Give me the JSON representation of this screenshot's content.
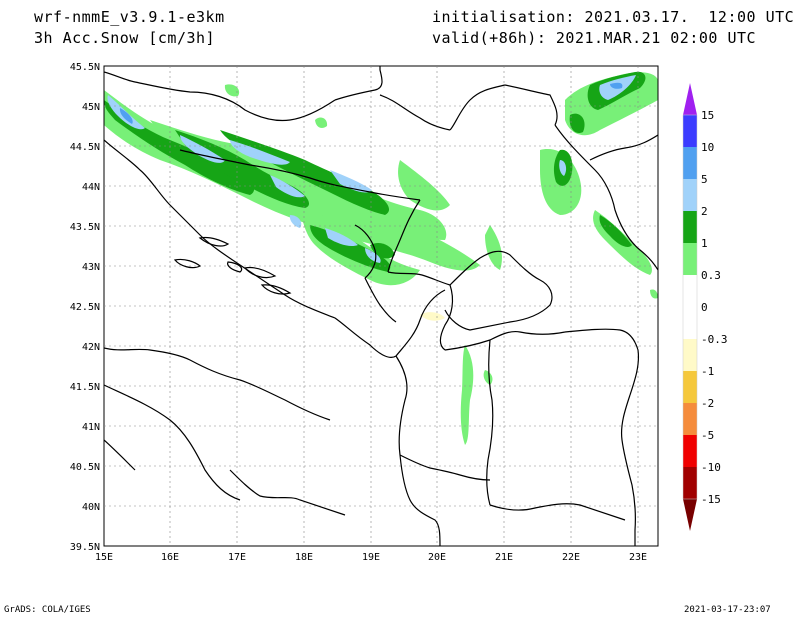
{
  "header": {
    "model": "wrf-nmmE_v3.9.1-e3km",
    "variable": "3h Acc.Snow [cm/3h]",
    "initialisation": "initialisation: 2021.03.17.  12:00 UTC",
    "valid": "valid(+86h): 2021.MAR.21 02:00 UTC"
  },
  "footer": {
    "left": "GrADS: COLA/IGES",
    "right": "2021-03-17-23:07"
  },
  "map": {
    "lat_labels": [
      "45.5N",
      "45N",
      "44.5N",
      "44N",
      "43.5N",
      "43N",
      "42.5N",
      "42N",
      "41.5N",
      "41N",
      "40.5N",
      "40N",
      "39.5N"
    ],
    "lon_labels": [
      "15E",
      "16E",
      "17E",
      "18E",
      "19E",
      "20E",
      "21E",
      "22E",
      "23E"
    ],
    "lat_range": [
      39.5,
      45.5
    ],
    "lon_range": [
      15,
      23.3
    ],
    "grid": "dotted"
  },
  "colorbar": {
    "labels": [
      "15",
      "10",
      "5",
      "2",
      "1",
      "0.3",
      "0",
      "-0.3",
      "-1",
      "-2",
      "-5",
      "-10",
      "-15"
    ],
    "colors": [
      "#a020f0",
      "#3c3cff",
      "#50a0f0",
      "#a0d2fa",
      "#16a516",
      "#78f078",
      "#ffffff",
      "#ffffff",
      "#fffac8",
      "#f5c83c",
      "#f58c3c",
      "#f00000",
      "#a00000",
      "#780000"
    ]
  }
}
